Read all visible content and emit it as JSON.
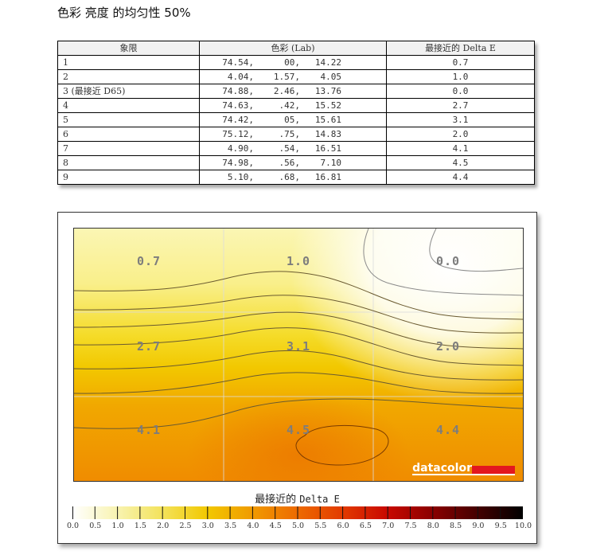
{
  "page": {
    "title": "色彩 亮度 的均匀性 50%"
  },
  "table": {
    "headers": [
      "象限",
      "色彩 (Lab)",
      "最接近的 Delta E"
    ],
    "rows": [
      {
        "quadrant": "1",
        "L": "74.54,",
        "a": "00,",
        "b": "14.22",
        "delta_e": "0.7"
      },
      {
        "quadrant": "2",
        "L": "4.04,",
        "a": "1.57,",
        "b": "4.05",
        "delta_e": "1.0"
      },
      {
        "quadrant": "3 (最接近 D65)",
        "L": "74.88,",
        "a": "2.46,",
        "b": "13.76",
        "delta_e": "0.0"
      },
      {
        "quadrant": "4",
        "L": "74.63,",
        "a": ".42,",
        "b": "15.52",
        "delta_e": "2.7"
      },
      {
        "quadrant": "5",
        "L": "74.42,",
        "a": "05,",
        "b": "15.61",
        "delta_e": "3.1"
      },
      {
        "quadrant": "6",
        "L": "75.12,",
        "a": ".75,",
        "b": "14.83",
        "delta_e": "2.0"
      },
      {
        "quadrant": "7",
        "L": "4.90,",
        "a": ".54,",
        "b": "16.51",
        "delta_e": "4.1"
      },
      {
        "quadrant": "8",
        "L": "74.98,",
        "a": ".56,",
        "b": "7.10",
        "delta_e": "4.5"
      },
      {
        "quadrant": "9",
        "L": "5.10,",
        "a": ".68,",
        "b": "16.81",
        "delta_e": "4.4"
      }
    ]
  },
  "chart": {
    "logo_text": "datacolor",
    "legend_title_cjk": "最接近的",
    "legend_title_latin": "Delta E",
    "colors": {
      "logo_red": "#e3171f",
      "low": "#fffbe0",
      "mid": "#f2c800",
      "high": "#f08a00",
      "max": "#000000"
    }
  },
  "chart_data": {
    "type": "heatmap",
    "title": "色彩 亮度 的均匀性 50%",
    "grid": {
      "rows": 3,
      "cols": 3
    },
    "values": [
      [
        0.7,
        1.0,
        0.0
      ],
      [
        2.7,
        3.1,
        2.0
      ],
      [
        4.1,
        4.5,
        4.4
      ]
    ],
    "cell_labels": [
      "0.7",
      "1.0",
      "0.0",
      "2.7",
      "3.1",
      "2.0",
      "4.1",
      "4.5",
      "4.4"
    ],
    "colorbar": {
      "label": "最接近的 Delta E",
      "range": [
        0.0,
        10.0
      ],
      "ticks": [
        "0.0",
        "0.5",
        "1.0",
        "1.5",
        "2.0",
        "2.5",
        "3.0",
        "3.5",
        "4.0",
        "4.5",
        "5.0",
        "5.5",
        "6.0",
        "6.5",
        "7.0",
        "7.5",
        "8.0",
        "8.5",
        "9.0",
        "9.5",
        "10.0"
      ]
    },
    "contours": true,
    "legend_position": "bottom"
  }
}
